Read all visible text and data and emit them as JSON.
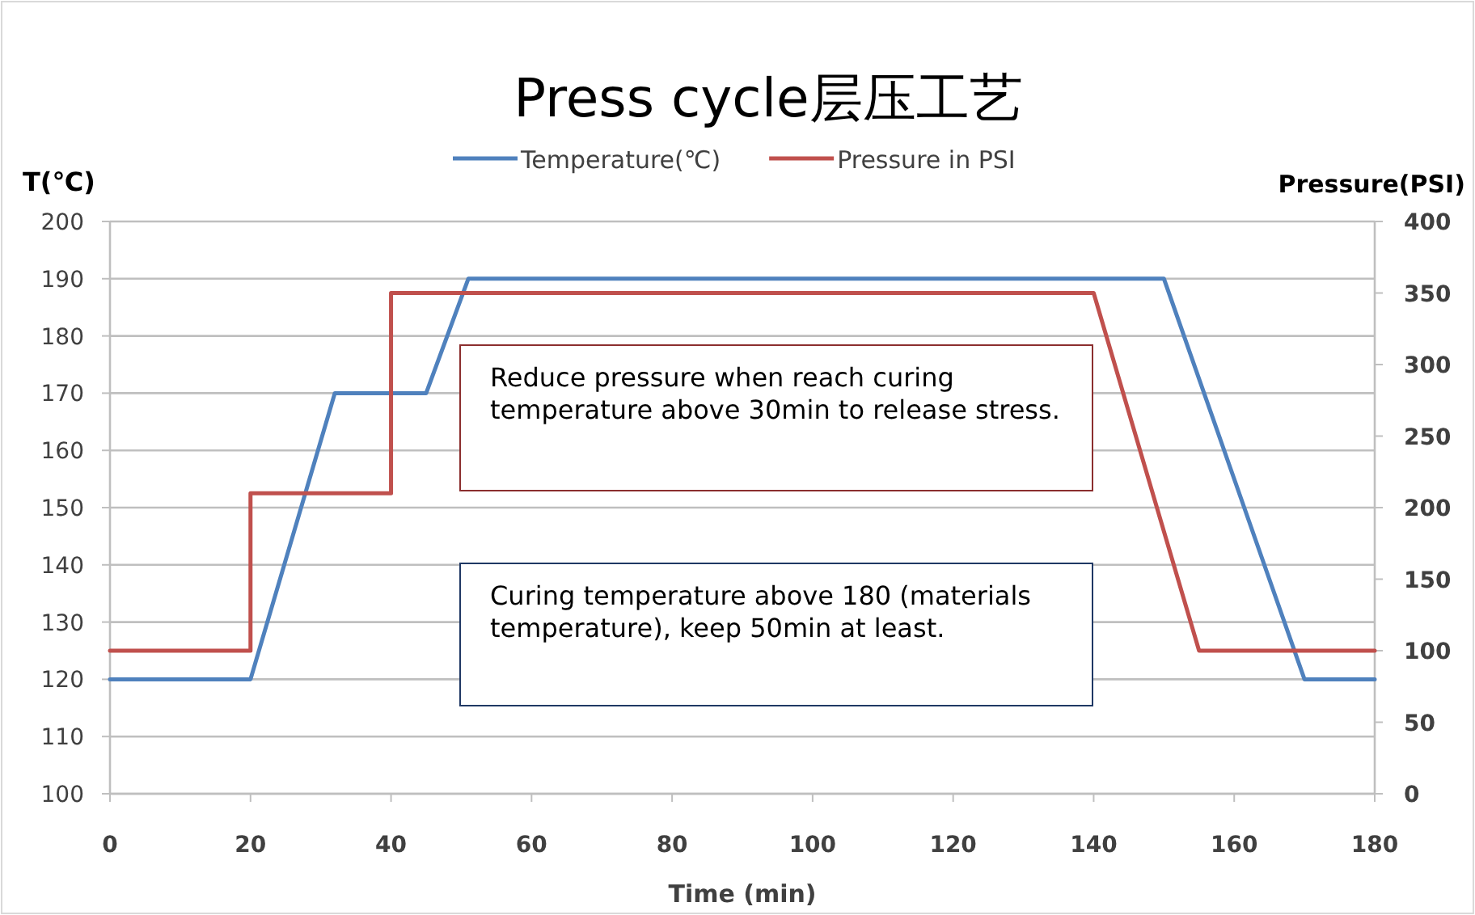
{
  "chart_data": {
    "type": "line",
    "title": "Press cycle层压工艺",
    "xlabel": "Time (min)",
    "ylabel": "T(℃)",
    "y2label": "Pressure(PSI)",
    "series": [
      {
        "name": "Temperature(℃)",
        "color": "#4f81bd",
        "x": [
          0,
          20,
          32,
          45,
          51,
          150,
          170,
          180
        ],
        "values": [
          120,
          120,
          170,
          170,
          190,
          190,
          120,
          120
        ]
      },
      {
        "name": "Pressure in PSI",
        "color": "#c0504d",
        "axis": "y2",
        "x": [
          0,
          20,
          20,
          40,
          40,
          140,
          155,
          180
        ],
        "values": [
          100,
          100,
          210,
          210,
          350,
          350,
          100,
          100
        ]
      }
    ],
    "annotations": [
      "Reduce pressure when reach curing temperature above 30min to release stress.",
      "Curing temperature above 180 (materials temperature), keep 50min at least."
    ],
    "xlim": [
      0,
      180
    ],
    "xticks": [
      0,
      20,
      40,
      60,
      80,
      100,
      120,
      140,
      160,
      180
    ],
    "ylim": [
      100,
      200
    ],
    "yticks": [
      100,
      110,
      120,
      130,
      140,
      150,
      160,
      170,
      180,
      190,
      200
    ],
    "y2lim": [
      0,
      400
    ],
    "y2ticks": [
      0,
      50,
      100,
      150,
      200,
      250,
      300,
      350,
      400
    ],
    "grid": "y",
    "legend": "top",
    "marker": "none",
    "line_style": "solid"
  }
}
